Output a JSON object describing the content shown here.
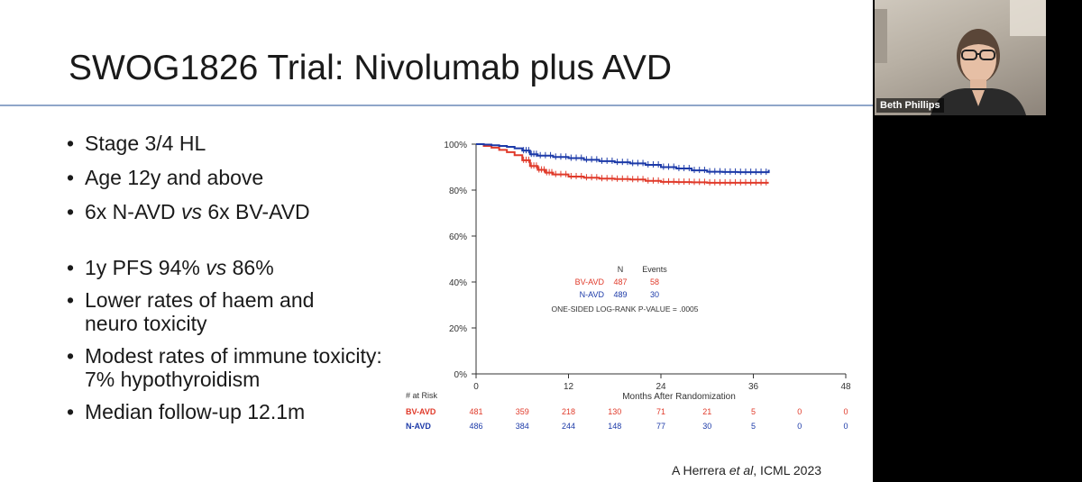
{
  "slide": {
    "title": "SWOG1826 Trial: Nivolumab plus AVD",
    "bullets": [
      {
        "pre": "Stage 3/4 HL",
        "em": "",
        "post": ""
      },
      {
        "pre": "Age 12y and above",
        "em": "",
        "post": ""
      },
      {
        "pre": "6x N-AVD ",
        "em": "vs",
        "post": " 6x BV-AVD"
      },
      {
        "pre": "1y PFS 94% ",
        "em": "vs",
        "post": " 86%"
      },
      {
        "pre": "Lower rates of haem and neuro toxicity",
        "em": "",
        "post": ""
      },
      {
        "pre": "Modest rates of immune toxicity: 7% hypothyroidism",
        "em": "",
        "post": ""
      },
      {
        "pre": "Median follow-up 12.1m",
        "em": "",
        "post": ""
      }
    ],
    "citation": {
      "pre": "A Herrera ",
      "em": "et al",
      "post": ", ICML 2023"
    }
  },
  "chart_data": {
    "type": "line",
    "xlabel": "Months After Randomization",
    "ylabel": "",
    "x_ticks": [
      0,
      12,
      24,
      36,
      48
    ],
    "y_ticks": [
      "0%",
      "20%",
      "40%",
      "60%",
      "80%",
      "100%"
    ],
    "xlim": [
      0,
      48
    ],
    "ylim": [
      0,
      100
    ],
    "legend": {
      "header_n": "N",
      "header_events": "Events",
      "rows": [
        {
          "name": "BV-AVD",
          "n": "487",
          "events": "58"
        },
        {
          "name": "N-AVD",
          "n": "489",
          "events": "30"
        }
      ],
      "pvalue": "ONE-SIDED LOG-RANK P-VALUE = .0005"
    },
    "series": [
      {
        "name": "BV-AVD",
        "color": "#e03a2a",
        "x": [
          0,
          1,
          2,
          3,
          4,
          5,
          6,
          7,
          8,
          9,
          10,
          12,
          14,
          16,
          18,
          20,
          22,
          24,
          26,
          28,
          30,
          32,
          34,
          36,
          38
        ],
        "y": [
          100,
          99.2,
          98.5,
          97.5,
          96.5,
          95.2,
          93,
          90.5,
          88.8,
          87.6,
          86.8,
          85.9,
          85.4,
          85.0,
          84.8,
          84.6,
          84.0,
          83.6,
          83.5,
          83.4,
          83.2,
          83.2,
          83.2,
          83.2,
          83.2
        ]
      },
      {
        "name": "N-AVD",
        "color": "#1c3aa8",
        "x": [
          0,
          1,
          2,
          3,
          4,
          5,
          6,
          7,
          8,
          10,
          12,
          14,
          16,
          18,
          20,
          22,
          24,
          26,
          28,
          30,
          32,
          34,
          36,
          38
        ],
        "y": [
          100,
          99.8,
          99.5,
          99.2,
          98.8,
          98.2,
          97.2,
          95.6,
          95.0,
          94.4,
          93.9,
          93.2,
          92.6,
          92.1,
          91.6,
          91.0,
          90.0,
          89.4,
          88.6,
          88.0,
          87.9,
          87.8,
          87.8,
          88.8
        ]
      }
    ],
    "risk_table": {
      "label": "# at Risk",
      "rows": [
        {
          "name": "BV-AVD",
          "color": "#e03a2a",
          "values": [
            "481",
            "359",
            "218",
            "130",
            "71",
            "21",
            "5",
            "0",
            "0"
          ]
        },
        {
          "name": "N-AVD",
          "color": "#1c3aa8",
          "values": [
            "486",
            "384",
            "244",
            "148",
            "77",
            "30",
            "5",
            "0",
            "0"
          ]
        }
      ],
      "months": [
        0,
        6,
        12,
        18,
        24,
        30,
        36,
        42,
        48
      ]
    }
  },
  "video": {
    "participant_name": "Beth Phillips"
  }
}
